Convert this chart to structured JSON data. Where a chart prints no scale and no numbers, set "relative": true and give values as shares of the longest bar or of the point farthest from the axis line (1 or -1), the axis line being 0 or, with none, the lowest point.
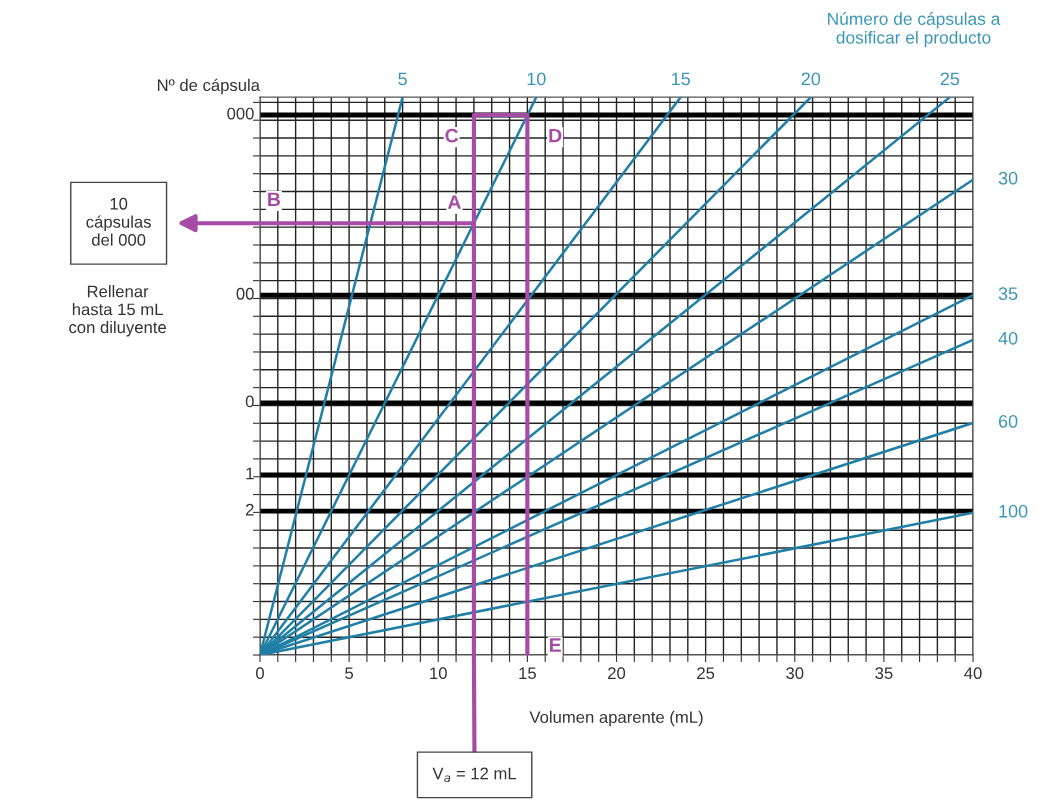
{
  "chart_data": {
    "type": "line",
    "relative": true,
    "xlabel": "Volumen aparente (mL)",
    "ylabel": "Nº de cápsula",
    "legend_title": "Número de cápsulas a\ndosificar el producto",
    "xlim": [
      0,
      40
    ],
    "xticks": [
      0,
      {
        "value": 1,
        "label": null
      },
      {
        "value": 2,
        "label": null
      },
      {
        "value": 3,
        "label": null
      },
      {
        "value": 4,
        "label": null
      },
      5,
      {
        "value": 6,
        "label": null
      },
      {
        "value": 7,
        "label": null
      },
      {
        "value": 8,
        "label": null
      },
      {
        "value": 9,
        "label": null
      },
      10,
      {
        "value": 11,
        "label": null
      },
      {
        "value": 12,
        "label": null
      },
      {
        "value": 13,
        "label": null
      },
      {
        "value": 14,
        "label": null
      },
      15,
      {
        "value": 16,
        "label": null
      },
      {
        "value": 17,
        "label": null
      },
      {
        "value": 18,
        "label": null
      },
      {
        "value": 19,
        "label": null
      },
      20,
      {
        "value": 21,
        "label": null
      },
      {
        "value": 22,
        "label": null
      },
      {
        "value": 23,
        "label": null
      },
      {
        "value": 24,
        "label": null
      },
      25,
      {
        "value": 26,
        "label": null
      },
      {
        "value": 27,
        "label": null
      },
      {
        "value": 28,
        "label": null
      },
      {
        "value": 29,
        "label": null
      },
      30,
      {
        "value": 31,
        "label": null
      },
      {
        "value": 32,
        "label": null
      },
      {
        "value": 33,
        "label": null
      },
      {
        "value": 34,
        "label": null
      },
      35,
      {
        "value": 36,
        "label": null
      },
      {
        "value": 37,
        "label": null
      },
      {
        "value": 38,
        "label": null
      },
      {
        "value": 39,
        "label": null
      },
      40
    ],
    "grid": true,
    "ref_lines": [
      {
        "axis": "y",
        "value": 0.968,
        "color": "#000000"
      },
      {
        "axis": "y",
        "value": 0.645,
        "color": "#000000"
      },
      {
        "axis": "y",
        "value": 0.452,
        "color": "#000000"
      },
      {
        "axis": "y",
        "value": 0.323,
        "color": "#000000"
      },
      {
        "axis": "y",
        "value": 0.258,
        "color": "#000000"
      }
    ],
    "series": [
      {
        "name": "5",
        "color": "#1f7fa6",
        "x": [
          0,
          8.0
        ],
        "values": [
          0,
          1
        ]
      },
      {
        "name": "10",
        "color": "#1f7fa6",
        "x": [
          0,
          15.5
        ],
        "values": [
          0,
          1
        ]
      },
      {
        "name": "15",
        "color": "#1f7fa6",
        "x": [
          0,
          23.6
        ],
        "values": [
          0,
          1
        ]
      },
      {
        "name": "20",
        "color": "#1f7fa6",
        "x": [
          0,
          30.9
        ],
        "values": [
          0,
          1
        ]
      },
      {
        "name": "25",
        "color": "#1f7fa6",
        "x": [
          0,
          38.7
        ],
        "values": [
          0,
          1
        ]
      },
      {
        "name": "30",
        "color": "#1f7fa6",
        "x": [
          0,
          40
        ],
        "values": [
          0,
          0.852
        ]
      },
      {
        "name": "35",
        "color": "#1f7fa6",
        "x": [
          0,
          40
        ],
        "values": [
          0,
          0.645
        ]
      },
      {
        "name": "40",
        "color": "#1f7fa6",
        "x": [
          0,
          40
        ],
        "values": [
          0,
          0.565
        ]
      },
      {
        "name": "60",
        "color": "#1f7fa6",
        "x": [
          0,
          40
        ],
        "values": [
          0,
          0.416
        ]
      },
      {
        "name": "100",
        "color": "#1f7fa6",
        "x": [
          0,
          40
        ],
        "values": [
          0,
          0.255
        ]
      },
      {
        "color": "#a64ca6",
        "x": [
          12,
          12,
          15,
          15
        ],
        "values": [
          0,
          0.968,
          0.968,
          0
        ]
      },
      {
        "color": "#a64ca6",
        "x": [
          0,
          12
        ],
        "values": [
          0.774,
          0.774
        ]
      }
    ],
    "annotations": [
      "000",
      "00",
      "0",
      "1",
      "2",
      "A",
      "B",
      "C",
      "D",
      "E",
      "10\ncápsulas\ndel 000",
      "Rellenar\nhasta 15 mL\ncon diluyente",
      "V$_{a}$ = 12 mL"
    ]
  }
}
